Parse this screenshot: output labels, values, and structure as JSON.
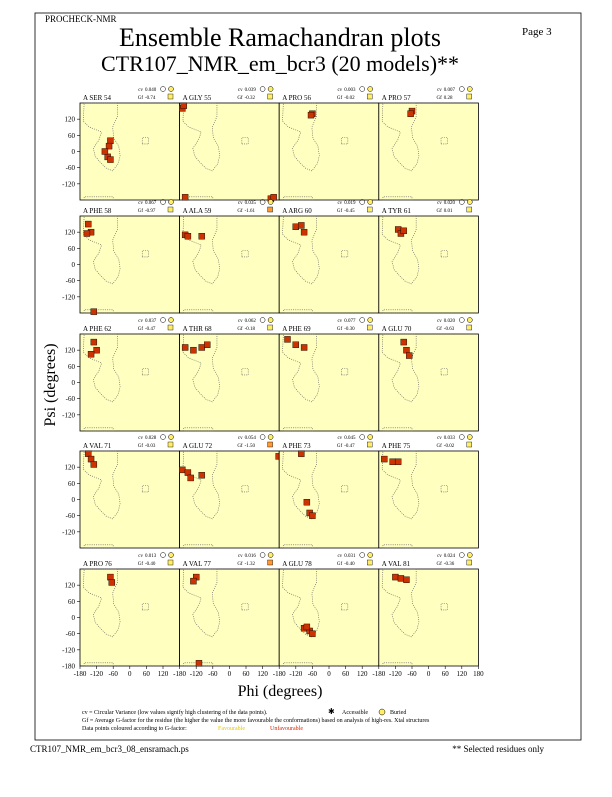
{
  "header": {
    "program": "PROCHECK-NMR",
    "page": "Page  3",
    "title": "Ensemble Ramachandran plots",
    "subtitle": "CTR107_NMR_em_bcr3 (20 models)**"
  },
  "axes": {
    "xlabel": "Phi (degrees)",
    "ylabel": "Psi (degrees)",
    "xlim": [
      -180,
      180
    ],
    "ylim": [
      -180,
      180
    ],
    "xticks": [
      -180,
      -120,
      -60,
      0,
      60,
      120,
      180
    ],
    "yticks": [
      120,
      60,
      0,
      -60,
      -120
    ],
    "background": "#ffffc0",
    "point_color": "#cc3300"
  },
  "panel_labels": {
    "cv": "cv",
    "gf": "Gf"
  },
  "chart_data": [
    {
      "type": "scatter",
      "title": "A SER 54",
      "cv": "0.040",
      "gf": "-0.74",
      "gf_color": "#ffee66",
      "x": [
        -70,
        -75,
        -80,
        -70,
        -90
      ],
      "y": [
        40,
        20,
        -20,
        -30,
        0
      ]
    },
    {
      "type": "scatter",
      "title": "A GLY 55",
      "cv": "0.039",
      "gf": "-0.32",
      "gf_color": "#ffee66",
      "x": [
        -170,
        -165,
        -160,
        150,
        160
      ],
      "y": [
        160,
        170,
        -170,
        -175,
        -170
      ]
    },
    {
      "type": "scatter",
      "title": "A PRO 56",
      "cv": "0.003",
      "gf": "-0.02",
      "gf_color": "#ffee66",
      "x": [
        -60,
        -65
      ],
      "y": [
        140,
        135
      ]
    },
    {
      "type": "scatter",
      "title": "A PRO 57",
      "cv": "0.007",
      "gf": "0.28",
      "gf_color": "#ffee66",
      "x": [
        -60,
        -65
      ],
      "y": [
        150,
        140
      ]
    },
    {
      "type": "scatter",
      "title": "A PHE 58",
      "cv": "0.067",
      "gf": "-0.97",
      "gf_color": "#ffee66",
      "x": [
        -150,
        -140,
        -155,
        -130
      ],
      "y": [
        150,
        120,
        115,
        -175
      ]
    },
    {
      "type": "scatter",
      "title": "A ALA 59",
      "cv": "0.035",
      "gf": "-1.61",
      "gf_color": "#ff9933",
      "x": [
        -160,
        -150,
        -100
      ],
      "y": [
        110,
        105,
        105
      ]
    },
    {
      "type": "scatter",
      "title": "A ARG 60",
      "cv": "0.019",
      "gf": "-0.45",
      "gf_color": "#ffee66",
      "x": [
        -120,
        -100,
        -90
      ],
      "y": [
        140,
        145,
        120
      ]
    },
    {
      "type": "scatter",
      "title": "A TYR 61",
      "cv": "0.020",
      "gf": "0.01",
      "gf_color": "#ffee66",
      "x": [
        -110,
        -100,
        -90
      ],
      "y": [
        130,
        115,
        125
      ]
    },
    {
      "type": "scatter",
      "title": "A PHE 62",
      "cv": "0.037",
      "gf": "-0.47",
      "gf_color": "#ffee66",
      "x": [
        -130,
        -120,
        -140
      ],
      "y": [
        150,
        120,
        105
      ]
    },
    {
      "type": "scatter",
      "title": "A THR 68",
      "cv": "0.062",
      "gf": "-0.18",
      "gf_color": "#ffee66",
      "x": [
        -160,
        -130,
        -100,
        -80
      ],
      "y": [
        130,
        120,
        130,
        140
      ]
    },
    {
      "type": "scatter",
      "title": "A PHE 69",
      "cv": "0.077",
      "gf": "-0.30",
      "gf_color": "#ffee66",
      "x": [
        -150,
        -120,
        -90
      ],
      "y": [
        160,
        140,
        130
      ]
    },
    {
      "type": "scatter",
      "title": "A GLU 70",
      "cv": "0.020",
      "gf": "-0.63",
      "gf_color": "#ffee66",
      "x": [
        -90,
        -80,
        -70
      ],
      "y": [
        150,
        120,
        100
      ]
    },
    {
      "type": "scatter",
      "title": "A VAL 71",
      "cv": "0.028",
      "gf": "-0.03",
      "gf_color": "#ffee66",
      "x": [
        -150,
        -140,
        -130
      ],
      "y": [
        170,
        150,
        130
      ]
    },
    {
      "type": "scatter",
      "title": "A GLU 72",
      "cv": "0.054",
      "gf": "-1.50",
      "gf_color": "#ff9933",
      "x": [
        -170,
        -150,
        -140,
        -100,
        178
      ],
      "y": [
        110,
        100,
        80,
        90,
        160
      ]
    },
    {
      "type": "scatter",
      "title": "A PHE 73",
      "cv": "0.045",
      "gf": "-0.47",
      "gf_color": "#ffee66",
      "x": [
        -100,
        -80,
        -70,
        -60
      ],
      "y": [
        170,
        -10,
        -50,
        -60
      ]
    },
    {
      "type": "scatter",
      "title": "A PHE 75",
      "cv": "0.033",
      "gf": "-0.02",
      "gf_color": "#ffee66",
      "x": [
        -160,
        -130,
        -110
      ],
      "y": [
        150,
        140,
        140
      ]
    },
    {
      "type": "scatter",
      "title": "A PRO 76",
      "cv": "0.013",
      "gf": "-0.40",
      "gf_color": "#ffee66",
      "x": [
        -70,
        -65
      ],
      "y": [
        150,
        130
      ]
    },
    {
      "type": "scatter",
      "title": "A VAL 77",
      "cv": "0.016",
      "gf": "-1.32",
      "gf_color": "#ff9933",
      "x": [
        -120,
        -130,
        -110
      ],
      "y": [
        150,
        135,
        -170
      ]
    },
    {
      "type": "scatter",
      "title": "A GLU 78",
      "cv": "0.031",
      "gf": "-0.40",
      "gf_color": "#ffee66",
      "x": [
        -90,
        -70,
        -60,
        -80
      ],
      "y": [
        -40,
        -50,
        -60,
        -35
      ]
    },
    {
      "type": "scatter",
      "title": "A VAL 81",
      "cv": "0.024",
      "gf": "-0.36",
      "gf_color": "#ffee66",
      "x": [
        -120,
        -100,
        -80
      ],
      "y": [
        150,
        145,
        140
      ]
    }
  ],
  "legend": {
    "cv_note": "cv = Circular Variance (low values signify high clustering of the data points).",
    "accessible": "Accessible",
    "buried": "Buried",
    "gf_note": "Gf = Average G-factor for the residue (the higher the value the more favourable the conformations) based on analysis of high-res. Xtal structures",
    "color_note": "Data points coloured according to G-factor:",
    "favourable": "Favourable",
    "unfavourable": "Unfavourable"
  },
  "footer": {
    "file": "CTR107_NMR_em_bcr3_08_ensramach.ps",
    "note": "** Selected residues only"
  }
}
